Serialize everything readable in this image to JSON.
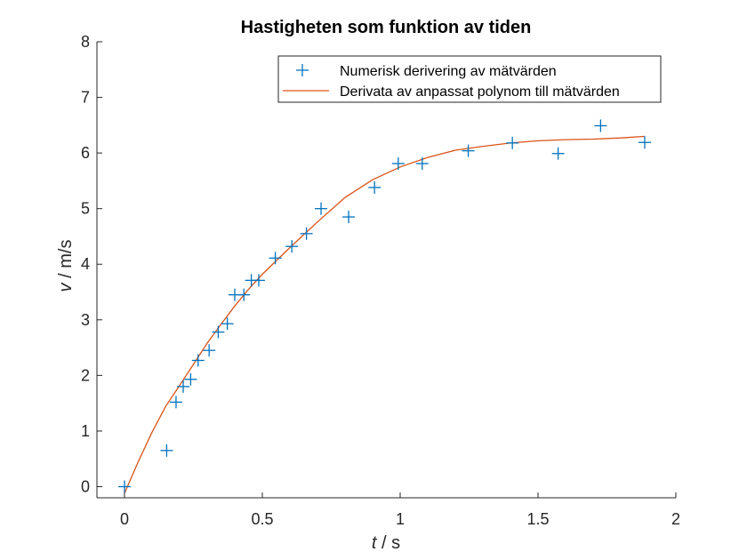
{
  "chart_data": {
    "type": "scatter",
    "title": "Hastigheten som funktion av tiden",
    "xlabel": {
      "italic": "t",
      "rest": " / s"
    },
    "ylabel": {
      "italic": "v",
      "rest": " / m/s"
    },
    "xlim": [
      -0.1,
      2
    ],
    "ylim": [
      -0.2,
      8
    ],
    "xticks": [
      0,
      0.5,
      1,
      1.5,
      2
    ],
    "xtick_labels": [
      "0",
      "0.5",
      "1",
      "1.5",
      "2"
    ],
    "yticks": [
      0,
      1,
      2,
      3,
      4,
      5,
      6,
      7,
      8
    ],
    "ytick_labels": [
      "0",
      "1",
      "2",
      "3",
      "4",
      "5",
      "6",
      "7",
      "8"
    ],
    "grid": false,
    "legend_position": "top-right",
    "series": [
      {
        "name": "Numerisk derivering av mätvärden",
        "type": "scatter",
        "marker": "+",
        "color": "#0072BD",
        "x": [
          0,
          0.153,
          0.187,
          0.213,
          0.24,
          0.267,
          0.307,
          0.34,
          0.373,
          0.4,
          0.433,
          0.46,
          0.487,
          0.547,
          0.607,
          0.66,
          0.713,
          0.813,
          0.907,
          0.993,
          1.08,
          1.247,
          1.407,
          1.573,
          1.727,
          1.887
        ],
        "y": [
          0,
          0.65,
          1.52,
          1.8,
          1.93,
          2.27,
          2.45,
          2.78,
          2.93,
          3.45,
          3.45,
          3.71,
          3.71,
          4.11,
          4.32,
          4.55,
          5.0,
          4.85,
          5.38,
          5.81,
          5.81,
          6.04,
          6.18,
          5.99,
          6.49,
          6.19
        ]
      },
      {
        "name": "Derivata av anpassat polynom till mätvärden",
        "type": "line",
        "color": "#D95319",
        "x": [
          0,
          0.05,
          0.1,
          0.15,
          0.2,
          0.25,
          0.3,
          0.35,
          0.4,
          0.45,
          0.5,
          0.6,
          0.7,
          0.8,
          0.9,
          1.0,
          1.1,
          1.2,
          1.3,
          1.4,
          1.5,
          1.6,
          1.7,
          1.8,
          1.887
        ],
        "y": [
          -0.12,
          0.45,
          0.98,
          1.45,
          1.82,
          2.2,
          2.58,
          2.92,
          3.25,
          3.55,
          3.82,
          4.3,
          4.76,
          5.2,
          5.52,
          5.75,
          5.92,
          6.05,
          6.12,
          6.18,
          6.22,
          6.24,
          6.25,
          6.27,
          6.3
        ]
      }
    ]
  }
}
